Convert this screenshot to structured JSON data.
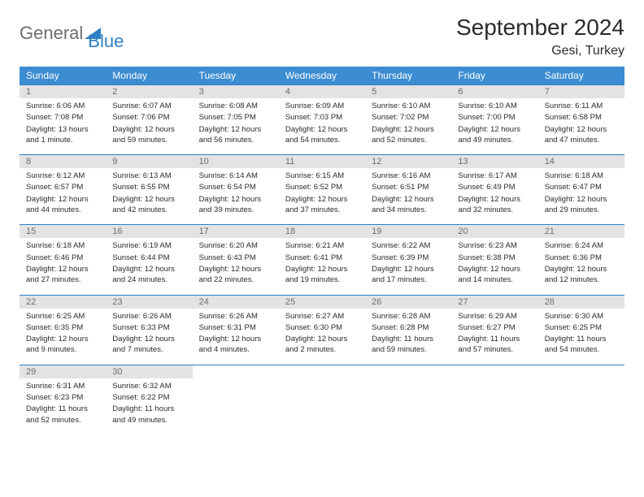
{
  "logo": {
    "text1": "General",
    "text2": "Blue"
  },
  "title": "September 2024",
  "location": "Gesi, Turkey",
  "colors": {
    "header_bg": "#3b8cd1",
    "header_text": "#ffffff",
    "daynum_bg": "#e3e3e3",
    "daynum_text": "#6d6d6d",
    "border": "#2f7fc5",
    "body_text": "#2b2b2b",
    "logo_gray": "#6d6d6d",
    "logo_blue": "#2f7fc5",
    "background": "#ffffff"
  },
  "weekdays": [
    "Sunday",
    "Monday",
    "Tuesday",
    "Wednesday",
    "Thursday",
    "Friday",
    "Saturday"
  ],
  "weeks": [
    [
      {
        "num": "1",
        "sunrise": "Sunrise: 6:06 AM",
        "sunset": "Sunset: 7:08 PM",
        "daylight": "Daylight: 13 hours and 1 minute."
      },
      {
        "num": "2",
        "sunrise": "Sunrise: 6:07 AM",
        "sunset": "Sunset: 7:06 PM",
        "daylight": "Daylight: 12 hours and 59 minutes."
      },
      {
        "num": "3",
        "sunrise": "Sunrise: 6:08 AM",
        "sunset": "Sunset: 7:05 PM",
        "daylight": "Daylight: 12 hours and 56 minutes."
      },
      {
        "num": "4",
        "sunrise": "Sunrise: 6:09 AM",
        "sunset": "Sunset: 7:03 PM",
        "daylight": "Daylight: 12 hours and 54 minutes."
      },
      {
        "num": "5",
        "sunrise": "Sunrise: 6:10 AM",
        "sunset": "Sunset: 7:02 PM",
        "daylight": "Daylight: 12 hours and 52 minutes."
      },
      {
        "num": "6",
        "sunrise": "Sunrise: 6:10 AM",
        "sunset": "Sunset: 7:00 PM",
        "daylight": "Daylight: 12 hours and 49 minutes."
      },
      {
        "num": "7",
        "sunrise": "Sunrise: 6:11 AM",
        "sunset": "Sunset: 6:58 PM",
        "daylight": "Daylight: 12 hours and 47 minutes."
      }
    ],
    [
      {
        "num": "8",
        "sunrise": "Sunrise: 6:12 AM",
        "sunset": "Sunset: 6:57 PM",
        "daylight": "Daylight: 12 hours and 44 minutes."
      },
      {
        "num": "9",
        "sunrise": "Sunrise: 6:13 AM",
        "sunset": "Sunset: 6:55 PM",
        "daylight": "Daylight: 12 hours and 42 minutes."
      },
      {
        "num": "10",
        "sunrise": "Sunrise: 6:14 AM",
        "sunset": "Sunset: 6:54 PM",
        "daylight": "Daylight: 12 hours and 39 minutes."
      },
      {
        "num": "11",
        "sunrise": "Sunrise: 6:15 AM",
        "sunset": "Sunset: 6:52 PM",
        "daylight": "Daylight: 12 hours and 37 minutes."
      },
      {
        "num": "12",
        "sunrise": "Sunrise: 6:16 AM",
        "sunset": "Sunset: 6:51 PM",
        "daylight": "Daylight: 12 hours and 34 minutes."
      },
      {
        "num": "13",
        "sunrise": "Sunrise: 6:17 AM",
        "sunset": "Sunset: 6:49 PM",
        "daylight": "Daylight: 12 hours and 32 minutes."
      },
      {
        "num": "14",
        "sunrise": "Sunrise: 6:18 AM",
        "sunset": "Sunset: 6:47 PM",
        "daylight": "Daylight: 12 hours and 29 minutes."
      }
    ],
    [
      {
        "num": "15",
        "sunrise": "Sunrise: 6:18 AM",
        "sunset": "Sunset: 6:46 PM",
        "daylight": "Daylight: 12 hours and 27 minutes."
      },
      {
        "num": "16",
        "sunrise": "Sunrise: 6:19 AM",
        "sunset": "Sunset: 6:44 PM",
        "daylight": "Daylight: 12 hours and 24 minutes."
      },
      {
        "num": "17",
        "sunrise": "Sunrise: 6:20 AM",
        "sunset": "Sunset: 6:43 PM",
        "daylight": "Daylight: 12 hours and 22 minutes."
      },
      {
        "num": "18",
        "sunrise": "Sunrise: 6:21 AM",
        "sunset": "Sunset: 6:41 PM",
        "daylight": "Daylight: 12 hours and 19 minutes."
      },
      {
        "num": "19",
        "sunrise": "Sunrise: 6:22 AM",
        "sunset": "Sunset: 6:39 PM",
        "daylight": "Daylight: 12 hours and 17 minutes."
      },
      {
        "num": "20",
        "sunrise": "Sunrise: 6:23 AM",
        "sunset": "Sunset: 6:38 PM",
        "daylight": "Daylight: 12 hours and 14 minutes."
      },
      {
        "num": "21",
        "sunrise": "Sunrise: 6:24 AM",
        "sunset": "Sunset: 6:36 PM",
        "daylight": "Daylight: 12 hours and 12 minutes."
      }
    ],
    [
      {
        "num": "22",
        "sunrise": "Sunrise: 6:25 AM",
        "sunset": "Sunset: 6:35 PM",
        "daylight": "Daylight: 12 hours and 9 minutes."
      },
      {
        "num": "23",
        "sunrise": "Sunrise: 6:26 AM",
        "sunset": "Sunset: 6:33 PM",
        "daylight": "Daylight: 12 hours and 7 minutes."
      },
      {
        "num": "24",
        "sunrise": "Sunrise: 6:26 AM",
        "sunset": "Sunset: 6:31 PM",
        "daylight": "Daylight: 12 hours and 4 minutes."
      },
      {
        "num": "25",
        "sunrise": "Sunrise: 6:27 AM",
        "sunset": "Sunset: 6:30 PM",
        "daylight": "Daylight: 12 hours and 2 minutes."
      },
      {
        "num": "26",
        "sunrise": "Sunrise: 6:28 AM",
        "sunset": "Sunset: 6:28 PM",
        "daylight": "Daylight: 11 hours and 59 minutes."
      },
      {
        "num": "27",
        "sunrise": "Sunrise: 6:29 AM",
        "sunset": "Sunset: 6:27 PM",
        "daylight": "Daylight: 11 hours and 57 minutes."
      },
      {
        "num": "28",
        "sunrise": "Sunrise: 6:30 AM",
        "sunset": "Sunset: 6:25 PM",
        "daylight": "Daylight: 11 hours and 54 minutes."
      }
    ],
    [
      {
        "num": "29",
        "sunrise": "Sunrise: 6:31 AM",
        "sunset": "Sunset: 6:23 PM",
        "daylight": "Daylight: 11 hours and 52 minutes."
      },
      {
        "num": "30",
        "sunrise": "Sunrise: 6:32 AM",
        "sunset": "Sunset: 6:22 PM",
        "daylight": "Daylight: 11 hours and 49 minutes."
      },
      null,
      null,
      null,
      null,
      null
    ]
  ]
}
